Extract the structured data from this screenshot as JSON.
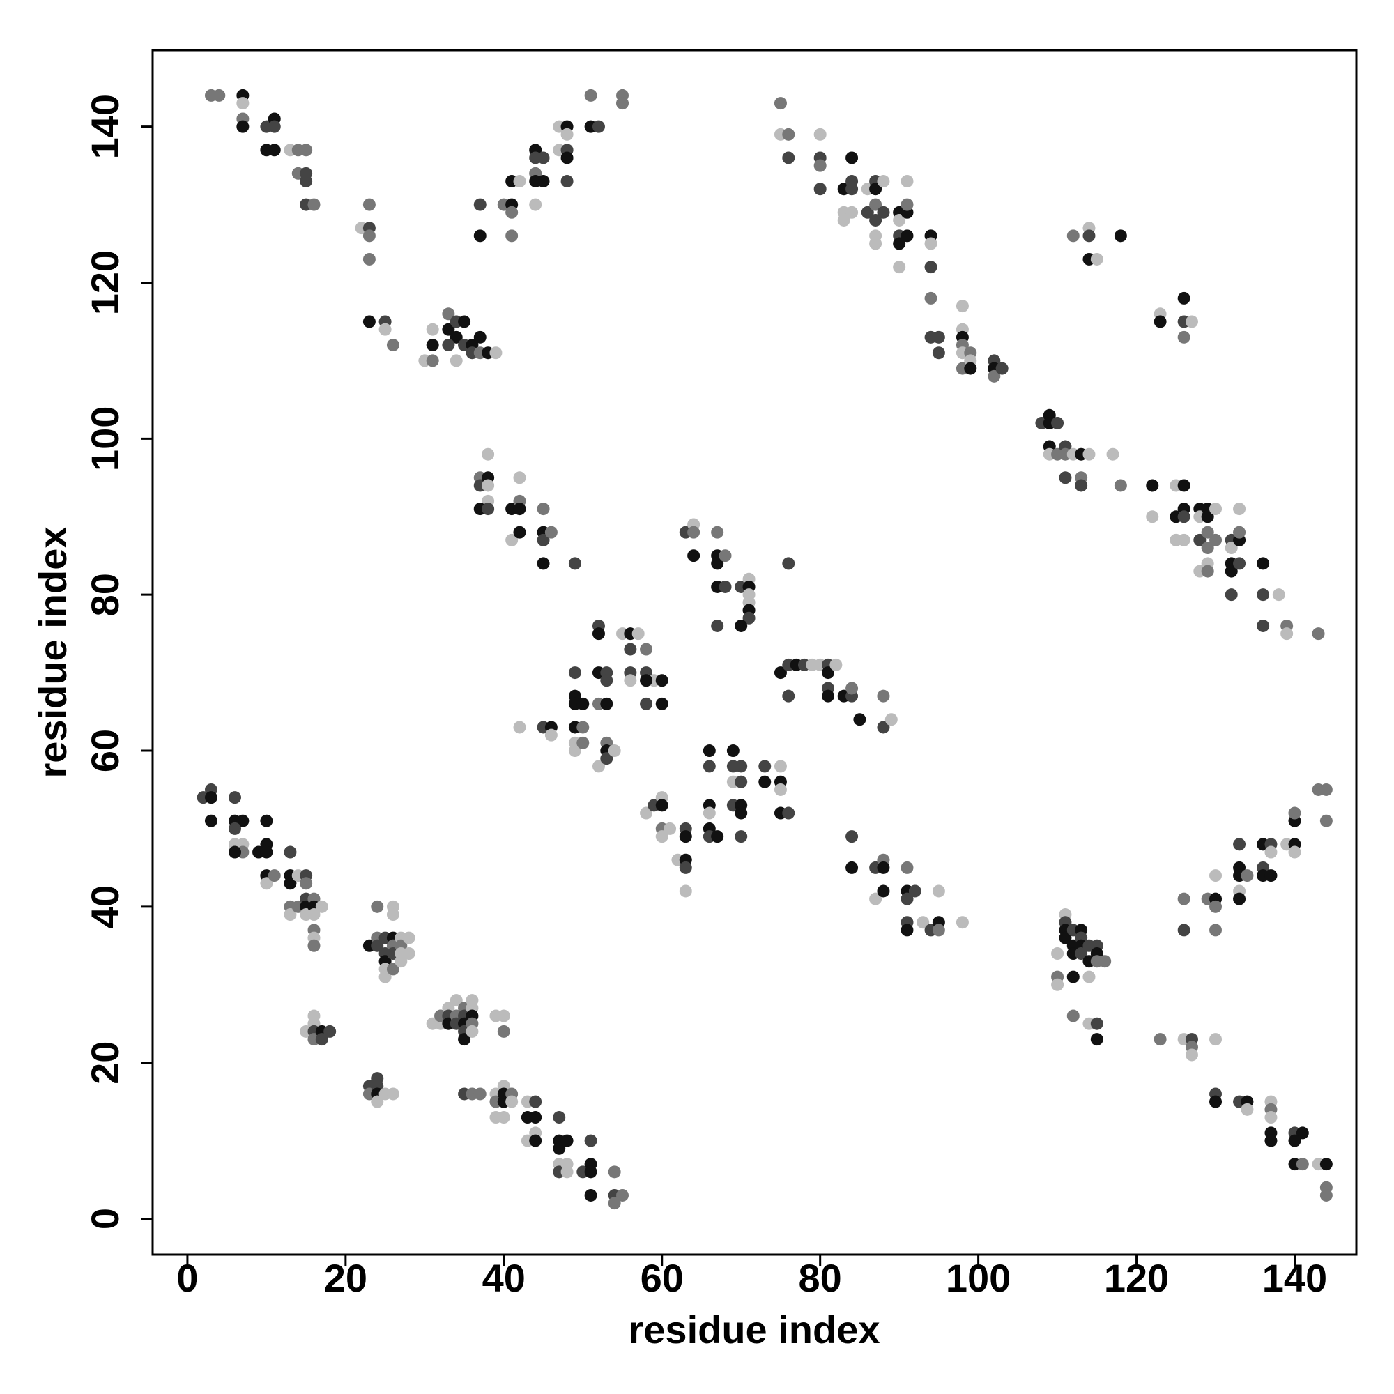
{
  "chart_data": {
    "type": "scatter",
    "xlabel": "residue index",
    "ylabel": "residue index",
    "xlim": [
      -4.4,
      147.8
    ],
    "ylim": [
      -4.6,
      149.8
    ],
    "xticks": [
      0,
      20,
      40,
      60,
      80,
      100,
      120,
      140
    ],
    "yticks": [
      0,
      20,
      40,
      60,
      80,
      100,
      120,
      140
    ],
    "x": [
      3,
      4,
      7,
      7,
      7,
      7,
      10,
      11,
      11,
      10,
      11,
      13,
      14,
      15,
      14,
      15,
      15,
      15,
      16,
      22,
      23,
      23,
      23,
      23,
      23,
      25,
      25,
      26,
      30,
      31,
      31,
      31,
      33,
      33,
      34,
      34,
      35,
      35,
      36,
      36,
      37,
      37,
      38,
      39,
      34,
      33,
      37,
      37,
      40,
      41,
      41,
      41,
      41,
      42,
      44,
      44,
      44,
      44,
      45,
      45,
      44,
      47,
      48,
      48,
      47,
      48,
      48,
      48,
      51,
      52,
      51,
      55,
      55,
      75,
      75,
      76,
      76,
      80,
      80,
      80,
      80,
      83,
      84,
      84,
      84,
      83,
      83,
      84,
      86,
      86,
      87,
      87,
      87,
      87,
      87,
      87,
      88,
      88,
      90,
      90,
      90,
      90,
      90,
      91,
      91,
      91,
      91,
      94,
      94,
      94,
      94,
      94,
      95,
      95,
      98,
      98,
      98,
      98,
      98,
      98,
      99,
      99,
      99,
      102,
      102,
      102,
      103,
      112,
      114,
      114,
      114,
      115,
      118,
      123,
      123,
      126,
      126,
      126,
      127,
      108,
      109,
      109,
      110,
      109,
      109,
      110,
      111,
      111,
      111,
      112,
      113,
      113,
      113,
      114,
      117,
      118,
      122,
      122,
      125,
      125,
      125,
      126,
      126,
      126,
      126,
      128,
      128,
      128,
      128,
      129,
      129,
      129,
      129,
      129,
      129,
      130,
      130,
      132,
      132,
      132,
      132,
      132,
      133,
      133,
      133,
      133,
      136,
      136,
      136,
      138,
      139,
      139,
      143,
      37,
      37,
      38,
      38,
      38,
      38,
      37,
      38,
      41,
      41,
      42,
      42,
      42,
      42,
      45,
      45,
      45,
      46,
      45,
      49,
      63,
      64,
      64,
      64,
      67,
      67,
      67,
      68,
      67,
      68,
      70,
      71,
      71,
      71,
      71,
      71,
      71,
      70,
      67,
      76,
      52,
      52,
      55,
      56,
      57,
      56,
      58,
      56,
      56,
      58,
      59,
      58,
      60,
      58,
      60,
      49,
      52,
      53,
      53,
      49,
      49,
      50,
      52,
      53,
      45,
      46,
      46,
      49,
      50,
      42,
      49,
      49,
      50,
      52,
      53,
      53,
      53,
      54,
      75,
      76,
      77,
      78,
      79,
      80,
      81,
      81,
      82,
      81,
      81,
      76,
      83,
      84,
      84,
      85,
      88,
      88,
      89,
      66,
      69,
      66,
      69,
      70,
      69,
      70,
      73,
      73,
      75,
      75,
      75,
      75,
      76,
      66,
      66,
      69,
      70,
      70,
      66,
      66,
      67,
      70,
      58,
      59,
      60,
      60,
      60,
      61,
      60,
      62,
      63,
      63,
      63,
      63,
      63,
      84,
      84,
      87,
      87,
      88,
      88,
      88,
      91,
      91,
      91,
      92,
      91,
      91,
      93,
      94,
      95,
      95,
      95,
      98,
      2,
      3,
      3,
      3,
      6,
      6,
      7,
      6,
      6,
      7,
      7,
      6,
      9,
      10,
      10,
      10,
      10,
      10,
      11,
      13,
      13,
      13,
      14,
      15,
      15,
      13,
      13,
      14,
      15,
      15,
      15,
      16,
      16,
      16,
      17,
      16,
      16,
      16,
      23,
      24,
      24,
      24,
      25,
      25,
      25,
      25,
      25,
      26,
      26,
      26,
      26,
      26,
      26,
      27,
      27,
      27,
      27,
      28,
      28,
      15,
      16,
      16,
      16,
      16,
      17,
      17,
      18,
      31,
      32,
      32,
      33,
      33,
      33,
      34,
      34,
      34,
      35,
      35,
      35,
      35,
      35,
      36,
      36,
      36,
      36,
      36,
      39,
      40,
      40,
      23,
      23,
      24,
      24,
      24,
      24,
      25,
      26,
      35,
      36,
      37,
      39,
      39,
      39,
      40,
      40,
      40,
      40,
      41,
      41,
      43,
      43,
      43,
      44,
      44,
      44,
      44,
      47,
      47,
      47,
      47,
      47,
      48,
      48,
      48,
      50,
      51,
      51,
      51,
      51,
      54,
      54,
      54,
      55,
      110,
      110,
      110,
      111,
      111,
      111,
      111,
      112,
      112,
      112,
      112,
      113,
      113,
      113,
      113,
      114,
      114,
      114,
      115,
      115,
      115,
      116,
      112,
      114,
      115,
      115,
      123,
      126,
      126,
      126,
      127,
      127,
      127,
      130,
      129,
      130,
      130,
      130,
      130,
      133,
      133,
      133,
      133,
      133,
      134,
      136,
      136,
      136,
      137,
      137,
      137,
      139,
      140,
      140,
      140,
      140,
      143,
      144,
      144,
      130,
      130,
      133,
      134,
      134,
      137,
      137,
      137,
      137,
      137,
      140,
      141,
      140,
      140,
      141,
      143,
      144,
      144,
      144
    ],
    "values": [
      144,
      144,
      144,
      143,
      141,
      140,
      140,
      141,
      140,
      137,
      137,
      137,
      137,
      137,
      134,
      134,
      133,
      130,
      130,
      127,
      127,
      126,
      130,
      123,
      115,
      115,
      114,
      112,
      110,
      110,
      112,
      114,
      116,
      114,
      115,
      113,
      115,
      112,
      112,
      111,
      113,
      111,
      111,
      111,
      110,
      112,
      126,
      130,
      130,
      130,
      129,
      126,
      133,
      133,
      137,
      136,
      134,
      133,
      133,
      136,
      130,
      140,
      140,
      139,
      137,
      137,
      136,
      133,
      140,
      140,
      144,
      144,
      143,
      143,
      139,
      139,
      136,
      139,
      136,
      135,
      132,
      132,
      132,
      133,
      136,
      129,
      128,
      129,
      129,
      132,
      133,
      132,
      130,
      128,
      126,
      125,
      129,
      133,
      129,
      128,
      126,
      125,
      122,
      129,
      130,
      133,
      126,
      126,
      125,
      122,
      118,
      113,
      113,
      111,
      117,
      114,
      113,
      112,
      111,
      109,
      111,
      110,
      109,
      110,
      109,
      108,
      109,
      126,
      127,
      126,
      123,
      123,
      126,
      116,
      115,
      118,
      115,
      113,
      115,
      102,
      103,
      102,
      102,
      99,
      98,
      98,
      99,
      98,
      95,
      98,
      98,
      95,
      94,
      98,
      98,
      94,
      94,
      90,
      94,
      90,
      87,
      94,
      91,
      90,
      87,
      91,
      90,
      87,
      83,
      91,
      90,
      88,
      86,
      84,
      83,
      91,
      87,
      87,
      86,
      84,
      83,
      80,
      87,
      88,
      91,
      84,
      84,
      80,
      76,
      80,
      76,
      75,
      75,
      95,
      94,
      98,
      95,
      94,
      92,
      91,
      91,
      91,
      87,
      95,
      92,
      91,
      88,
      91,
      88,
      87,
      88,
      84,
      84,
      88,
      89,
      88,
      85,
      88,
      85,
      84,
      85,
      81,
      81,
      81,
      82,
      81,
      80,
      79,
      78,
      77,
      76,
      76,
      84,
      76,
      75,
      75,
      75,
      75,
      73,
      73,
      70,
      69,
      70,
      69,
      69,
      69,
      66,
      66,
      70,
      70,
      70,
      69,
      67,
      66,
      66,
      66,
      66,
      63,
      63,
      62,
      63,
      63,
      63,
      61,
      60,
      61,
      58,
      61,
      60,
      59,
      60,
      70,
      71,
      71,
      71,
      71,
      71,
      71,
      70,
      71,
      68,
      67,
      67,
      67,
      67,
      68,
      64,
      67,
      63,
      64,
      60,
      60,
      58,
      58,
      58,
      56,
      56,
      58,
      56,
      58,
      56,
      55,
      52,
      52,
      53,
      52,
      53,
      53,
      52,
      50,
      49,
      49,
      49,
      52,
      53,
      54,
      53,
      50,
      50,
      49,
      46,
      50,
      49,
      46,
      45,
      42,
      49,
      45,
      45,
      41,
      46,
      45,
      42,
      45,
      42,
      41,
      42,
      38,
      37,
      38,
      37,
      38,
      37,
      42,
      38,
      54,
      55,
      54,
      51,
      54,
      51,
      51,
      50,
      48,
      48,
      47,
      47,
      47,
      48,
      47,
      51,
      44,
      43,
      44,
      47,
      44,
      43,
      44,
      44,
      43,
      40,
      39,
      40,
      41,
      40,
      39,
      41,
      40,
      39,
      40,
      37,
      36,
      35,
      35,
      40,
      36,
      35,
      36,
      34,
      33,
      32,
      31,
      40,
      39,
      36,
      35,
      34,
      32,
      36,
      35,
      34,
      33,
      36,
      34,
      24,
      26,
      25,
      24,
      23,
      24,
      23,
      24,
      25,
      25,
      26,
      27,
      26,
      25,
      28,
      26,
      25,
      27,
      26,
      25,
      24,
      23,
      28,
      27,
      26,
      25,
      24,
      26,
      26,
      24,
      17,
      16,
      18,
      17,
      16,
      15,
      16,
      16,
      16,
      16,
      16,
      16,
      15,
      13,
      17,
      16,
      15,
      13,
      16,
      15,
      15,
      13,
      10,
      15,
      13,
      11,
      10,
      13,
      10,
      9,
      7,
      6,
      10,
      7,
      6,
      6,
      10,
      7,
      6,
      3,
      6,
      3,
      2,
      3,
      34,
      31,
      30,
      39,
      38,
      37,
      36,
      37,
      35,
      34,
      31,
      37,
      36,
      35,
      34,
      35,
      33,
      31,
      35,
      34,
      33,
      33,
      26,
      25,
      25,
      23,
      23,
      41,
      37,
      23,
      23,
      22,
      21,
      23,
      41,
      44,
      41,
      40,
      37,
      48,
      45,
      44,
      42,
      41,
      44,
      48,
      45,
      44,
      48,
      47,
      44,
      48,
      48,
      47,
      51,
      52,
      55,
      55,
      51,
      16,
      15,
      15,
      15,
      14,
      15,
      14,
      13,
      11,
      10,
      11,
      11,
      10,
      7,
      7,
      7,
      7,
      4,
      3
    ],
    "colors": [
      "#777",
      "#777",
      "#111",
      "#bbb",
      "#777",
      "#111",
      "#444",
      "#111",
      "#444",
      "#111",
      "#111",
      "#bbb",
      "#777",
      "#777",
      "#777",
      "#444",
      "#444",
      "#444",
      "#777",
      "#bbb",
      "#444",
      "#777",
      "#777",
      "#777",
      "#111",
      "#444",
      "#bbb",
      "#777",
      "#bbb",
      "#777",
      "#111",
      "#bbb",
      "#777",
      "#111",
      "#444",
      "#111",
      "#111",
      "#444",
      "#111",
      "#444",
      "#111",
      "#777",
      "#111",
      "#bbb",
      "#bbb",
      "#444",
      "#111",
      "#444",
      "#777",
      "#111",
      "#777",
      "#777",
      "#111",
      "#bbb",
      "#111",
      "#444",
      "#777",
      "#111",
      "#111",
      "#444",
      "#bbb",
      "#bbb",
      "#111",
      "#bbb",
      "#bbb",
      "#444",
      "#111",
      "#444",
      "#111",
      "#444",
      "#777",
      "#777",
      "#777",
      "#777",
      "#bbb",
      "#777",
      "#444",
      "#bbb",
      "#444",
      "#777",
      "#444",
      "#111",
      "#444",
      "#444",
      "#111",
      "#bbb",
      "#bbb",
      "#bbb",
      "#444",
      "#bbb",
      "#444",
      "#111",
      "#777",
      "#444",
      "#bbb",
      "#bbb",
      "#444",
      "#bbb",
      "#111",
      "#bbb",
      "#444",
      "#111",
      "#bbb",
      "#111",
      "#777",
      "#bbb",
      "#111",
      "#111",
      "#bbb",
      "#444",
      "#777",
      "#444",
      "#444",
      "#444",
      "#bbb",
      "#bbb",
      "#111",
      "#777",
      "#bbb",
      "#777",
      "#777",
      "#bbb",
      "#111",
      "#444",
      "#111",
      "#777",
      "#444",
      "#777",
      "#bbb",
      "#444",
      "#111",
      "#bbb",
      "#111",
      "#bbb",
      "#111",
      "#111",
      "#444",
      "#777",
      "#bbb",
      "#444",
      "#111",
      "#111",
      "#444",
      "#111",
      "#bbb",
      "#777",
      "#444",
      "#777",
      "#444",
      "#bbb",
      "#111",
      "#777",
      "#444",
      "#bbb",
      "#bbb",
      "#777",
      "#111",
      "#bbb",
      "#bbb",
      "#111",
      "#bbb",
      "#111",
      "#111",
      "#444",
      "#bbb",
      "#111",
      "#bbb",
      "#444",
      "#bbb",
      "#111",
      "#111",
      "#777",
      "#777",
      "#bbb",
      "#777",
      "#bbb",
      "#777",
      "#444",
      "#bbb",
      "#111",
      "#111",
      "#444",
      "#111",
      "#777",
      "#bbb",
      "#444",
      "#111",
      "#444",
      "#444",
      "#bbb",
      "#777",
      "#bbb",
      "#777",
      "#777",
      "#444",
      "#bbb",
      "#111",
      "#bbb",
      "#bbb",
      "#111",
      "#444",
      "#111",
      "#bbb",
      "#bbb",
      "#777",
      "#111",
      "#111",
      "#777",
      "#111",
      "#444",
      "#777",
      "#111",
      "#444",
      "#444",
      "#bbb",
      "#777",
      "#111",
      "#777",
      "#111",
      "#111",
      "#777",
      "#111",
      "#444",
      "#444",
      "#bbb",
      "#111",
      "#bbb",
      "#bbb",
      "#111",
      "#444",
      "#111",
      "#444",
      "#444",
      "#444",
      "#111",
      "#bbb",
      "#111",
      "#bbb",
      "#444",
      "#777",
      "#444",
      "#bbb",
      "#444",
      "#bbb",
      "#111",
      "#111",
      "#444",
      "#111",
      "#444",
      "#111",
      "#444",
      "#444",
      "#111",
      "#111",
      "#111",
      "#777",
      "#111",
      "#444",
      "#111",
      "#bbb",
      "#111",
      "#777",
      "#bbb",
      "#bbb",
      "#bbb",
      "#777",
      "#bbb",
      "#777",
      "#111",
      "#444",
      "#bbb",
      "#111",
      "#444",
      "#111",
      "#444",
      "#bbb",
      "#bbb",
      "#444",
      "#111",
      "#bbb",
      "#444",
      "#111",
      "#444",
      "#111",
      "#444",
      "#777",
      "#111",
      "#777",
      "#444",
      "#bbb",
      "#111",
      "#111",
      "#444",
      "#444",
      "#444",
      "#bbb",
      "#444",
      "#444",
      "#111",
      "#bbb",
      "#111",
      "#bbb",
      "#111",
      "#444",
      "#111",
      "#bbb",
      "#444",
      "#111",
      "#111",
      "#111",
      "#444",
      "#111",
      "#444",
      "#bbb",
      "#444",
      "#bbb",
      "#111",
      "#777",
      "#bbb",
      "#bbb",
      "#bbb",
      "#444",
      "#111",
      "#111",
      "#444",
      "#bbb",
      "#444",
      "#111",
      "#444",
      "#bbb",
      "#777",
      "#111",
      "#111",
      "#777",
      "#111",
      "#444",
      "#444",
      "#444",
      "#111",
      "#bbb",
      "#444",
      "#111",
      "#777",
      "#bbb",
      "#bbb",
      "#444",
      "#444",
      "#111",
      "#111",
      "#444",
      "#111",
      "#111",
      "#444",
      "#bbb",
      "#bbb",
      "#777",
      "#111",
      "#111",
      "#111",
      "#111",
      "#111",
      "#111",
      "#bbb",
      "#777",
      "#444",
      "#111",
      "#111",
      "#bbb",
      "#444",
      "#777",
      "#777",
      "#bbb",
      "#777",
      "#444",
      "#111",
      "#bbb",
      "#777",
      "#111",
      "#bbb",
      "#bbb",
      "#777",
      "#bbb",
      "#777",
      "#111",
      "#777",
      "#777",
      "#444",
      "#444",
      "#444",
      "#111",
      "#bbb",
      "#bbb",
      "#bbb",
      "#bbb",
      "#111",
      "#777",
      "#444",
      "#777",
      "#bbb",
      "#777",
      "#bbb",
      "#bbb",
      "#bbb",
      "#bbb",
      "#bbb",
      "#bbb",
      "#bbb",
      "#444",
      "#777",
      "#111",
      "#444",
      "#444",
      "#bbb",
      "#bbb",
      "#777",
      "#bbb",
      "#444",
      "#111",
      "#bbb",
      "#777",
      "#444",
      "#777",
      "#444",
      "#111",
      "#444",
      "#111",
      "#bbb",
      "#bbb",
      "#111",
      "#777",
      "#bbb",
      "#bbb",
      "#bbb",
      "#777",
      "#444",
      "#777",
      "#444",
      "#444",
      "#111",
      "#bbb",
      "#bbb",
      "#bbb",
      "#444",
      "#777",
      "#777",
      "#bbb",
      "#777",
      "#bbb",
      "#bbb",
      "#111",
      "#111",
      "#bbb",
      "#777",
      "#bbb",
      "#bbb",
      "#111",
      "#bbb",
      "#444",
      "#111",
      "#bbb",
      "#111",
      "#444",
      "#111",
      "#111",
      "#bbb",
      "#444",
      "#111",
      "#bbb",
      "#bbb",
      "#444",
      "#444",
      "#111",
      "#111",
      "#111",
      "#777",
      "#444",
      "#777",
      "#777",
      "#bbb",
      "#777",
      "#bbb",
      "#bbb",
      "#444",
      "#111",
      "#111",
      "#444",
      "#111",
      "#111",
      "#111",
      "#111",
      "#444",
      "#111",
      "#444",
      "#444",
      "#111",
      "#bbb",
      "#444",
      "#111",
      "#777",
      "#777",
      "#777",
      "#bbb",
      "#444",
      "#111",
      "#777",
      "#777",
      "#444",
      "#bbb",
      "#444",
      "#777",
      "#bbb",
      "#bbb",
      "#777",
      "#bbb",
      "#111",
      "#777",
      "#777",
      "#444",
      "#111",
      "#111",
      "#bbb",
      "#111",
      "#777",
      "#111",
      "#444",
      "#111",
      "#444",
      "#bbb",
      "#111",
      "#bbb",
      "#111",
      "#bbb",
      "#111",
      "#777",
      "#777",
      "#777",
      "#777",
      "#444",
      "#111",
      "#444",
      "#111",
      "#bbb",
      "#bbb",
      "#777",
      "#bbb",
      "#111",
      "#111",
      "#444",
      "#111",
      "#111",
      "#111",
      "#777",
      "#bbb",
      "#111",
      "#777",
      "#777"
    ]
  }
}
